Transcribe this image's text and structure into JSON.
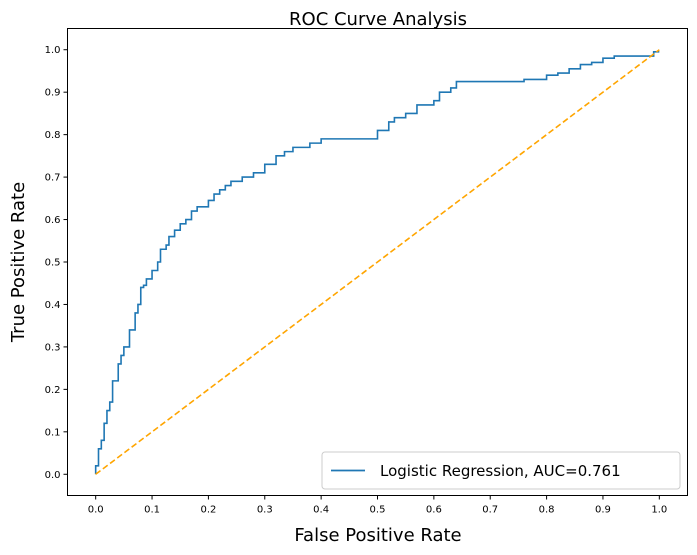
{
  "chart_data": {
    "type": "line",
    "title": "ROC Curve Analysis",
    "xlabel": "False Positive Rate",
    "ylabel": "True Positive Rate",
    "xlim": [
      -0.05,
      1.05
    ],
    "ylim": [
      -0.05,
      1.05
    ],
    "x_ticks": [
      "0.0",
      "0.1",
      "0.2",
      "0.3",
      "0.4",
      "0.5",
      "0.6",
      "0.7",
      "0.8",
      "0.9",
      "1.0"
    ],
    "y_ticks": [
      "0.0",
      "0.1",
      "0.2",
      "0.3",
      "0.4",
      "0.5",
      "0.6",
      "0.7",
      "0.8",
      "0.9",
      "1.0"
    ],
    "grid": false,
    "legend_position": "lower-right",
    "series": [
      {
        "name": "Logistic Regression, AUC=0.761",
        "color": "#1f77b4",
        "style": "step",
        "x": [
          0.0,
          0.0,
          0.005,
          0.005,
          0.01,
          0.01,
          0.015,
          0.015,
          0.02,
          0.02,
          0.025,
          0.025,
          0.03,
          0.03,
          0.04,
          0.04,
          0.045,
          0.045,
          0.05,
          0.05,
          0.06,
          0.06,
          0.07,
          0.07,
          0.075,
          0.075,
          0.08,
          0.08,
          0.085,
          0.085,
          0.09,
          0.09,
          0.1,
          0.1,
          0.11,
          0.11,
          0.115,
          0.115,
          0.125,
          0.125,
          0.13,
          0.13,
          0.14,
          0.14,
          0.15,
          0.15,
          0.16,
          0.16,
          0.17,
          0.17,
          0.18,
          0.18,
          0.2,
          0.2,
          0.21,
          0.21,
          0.22,
          0.22,
          0.23,
          0.23,
          0.24,
          0.24,
          0.26,
          0.26,
          0.28,
          0.28,
          0.3,
          0.3,
          0.32,
          0.32,
          0.335,
          0.335,
          0.35,
          0.35,
          0.38,
          0.38,
          0.4,
          0.4,
          0.42,
          0.42,
          0.5,
          0.5,
          0.52,
          0.52,
          0.53,
          0.53,
          0.55,
          0.55,
          0.57,
          0.57,
          0.6,
          0.6,
          0.61,
          0.61,
          0.63,
          0.63,
          0.64,
          0.64,
          0.76,
          0.76,
          0.8,
          0.8,
          0.82,
          0.82,
          0.84,
          0.84,
          0.86,
          0.86,
          0.88,
          0.88,
          0.9,
          0.9,
          0.92,
          0.92,
          0.99,
          0.99,
          1.0
        ],
        "y": [
          0.0,
          0.02,
          0.02,
          0.06,
          0.06,
          0.08,
          0.08,
          0.12,
          0.12,
          0.15,
          0.15,
          0.17,
          0.17,
          0.22,
          0.22,
          0.26,
          0.26,
          0.28,
          0.28,
          0.3,
          0.3,
          0.34,
          0.34,
          0.38,
          0.38,
          0.4,
          0.4,
          0.44,
          0.44,
          0.445,
          0.445,
          0.46,
          0.46,
          0.48,
          0.48,
          0.5,
          0.5,
          0.53,
          0.53,
          0.54,
          0.54,
          0.56,
          0.56,
          0.575,
          0.575,
          0.59,
          0.59,
          0.6,
          0.6,
          0.62,
          0.62,
          0.63,
          0.63,
          0.645,
          0.645,
          0.66,
          0.66,
          0.67,
          0.67,
          0.68,
          0.68,
          0.69,
          0.69,
          0.7,
          0.7,
          0.71,
          0.71,
          0.73,
          0.73,
          0.75,
          0.75,
          0.76,
          0.76,
          0.77,
          0.77,
          0.78,
          0.78,
          0.79,
          0.79,
          0.79,
          0.79,
          0.81,
          0.81,
          0.83,
          0.83,
          0.84,
          0.84,
          0.85,
          0.85,
          0.87,
          0.87,
          0.88,
          0.88,
          0.9,
          0.9,
          0.91,
          0.91,
          0.925,
          0.925,
          0.93,
          0.93,
          0.94,
          0.94,
          0.945,
          0.945,
          0.955,
          0.955,
          0.965,
          0.965,
          0.97,
          0.97,
          0.98,
          0.98,
          0.985,
          0.985,
          0.995,
          0.995
        ]
      },
      {
        "name": "",
        "color": "#ffa500",
        "style": "dashed",
        "x": [
          0,
          1
        ],
        "y": [
          0,
          1
        ]
      }
    ]
  }
}
